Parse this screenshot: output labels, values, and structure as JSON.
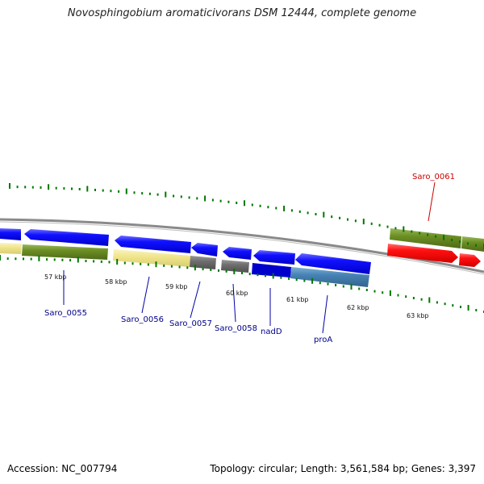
{
  "title": "Novosphingobium aromaticivorans DSM 12444, complete genome",
  "footer": {
    "accession": "Accession: NC_007794",
    "topology": "Topology: circular; Length: 3,561,584 bp; Genes: 3,397"
  },
  "kbp_labels": [
    "57 kbp",
    "58 kbp",
    "59 kbp",
    "60 kbp",
    "61 kbp",
    "62 kbp",
    "63 kbp"
  ],
  "genes": [
    {
      "name": "Saro_0055",
      "color": "#00008b"
    },
    {
      "name": "Saro_0056",
      "color": "#00008b"
    },
    {
      "name": "Saro_0057",
      "color": "#00008b"
    },
    {
      "name": "Saro_0058",
      "color": "#00008b"
    },
    {
      "name": "nadD",
      "color": "#00008b"
    },
    {
      "name": "proA",
      "color": "#00008b"
    },
    {
      "name": "Saro_0061",
      "color": "#cc0000"
    }
  ],
  "colors": {
    "backbone": "#808080",
    "forward_gene": "#ff0000",
    "reverse_gene": "#0000ff",
    "tick": "#007700",
    "cds_olive": "#6b8e23",
    "khaki": "#f0e68c",
    "gray_feature": "#696969",
    "steel_blue": "#4682b4"
  }
}
